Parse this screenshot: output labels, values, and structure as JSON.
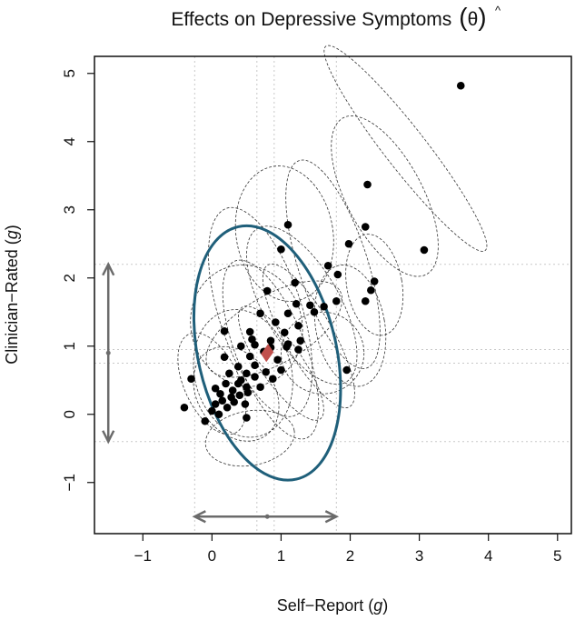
{
  "chart_data": {
    "type": "scatter",
    "title": "Effects on Depressive Symptoms",
    "title_symbol": "θ",
    "title_hat": "^",
    "xlabel": "Self−Report",
    "ylabel": "Clinician−Rated",
    "axis_unit": "g",
    "xlim": [
      -1.7,
      5.2
    ],
    "ylim": [
      -1.75,
      5.25
    ],
    "xticks": [
      -1,
      0,
      1,
      2,
      3,
      4,
      5
    ],
    "yticks": [
      -1,
      0,
      1,
      2,
      3,
      4,
      5
    ],
    "xtick_labels": [
      "−1",
      "0",
      "1",
      "2",
      "3",
      "4",
      "5"
    ],
    "ytick_labels": [
      "−1",
      "0",
      "1",
      "2",
      "3",
      "4",
      "5"
    ],
    "pooled_estimate": {
      "x": 0.8,
      "y": 0.9,
      "color": "#c0504d"
    },
    "prediction_ellipse": {
      "cx": 0.8,
      "cy": 0.9,
      "rx": 1.0,
      "ry": 1.9,
      "angle_deg": -13,
      "color": "#1f5f7a"
    },
    "self_report_interval": [
      -0.25,
      1.8
    ],
    "clinician_interval": [
      -0.4,
      2.2
    ],
    "reference_lines_x": [
      -0.25,
      0.65,
      0.9,
      1.8
    ],
    "reference_lines_y": [
      -0.4,
      0.75,
      0.95,
      2.2
    ],
    "points": [
      {
        "x": 3.6,
        "y": 4.82
      },
      {
        "x": 2.25,
        "y": 3.37
      },
      {
        "x": 1.1,
        "y": 2.78
      },
      {
        "x": 2.22,
        "y": 2.75
      },
      {
        "x": 1.0,
        "y": 2.42
      },
      {
        "x": 1.98,
        "y": 2.5
      },
      {
        "x": 3.07,
        "y": 2.41
      },
      {
        "x": 2.35,
        "y": 1.95
      },
      {
        "x": 1.68,
        "y": 2.18
      },
      {
        "x": 1.2,
        "y": 1.93
      },
      {
        "x": 1.82,
        "y": 2.05
      },
      {
        "x": 0.8,
        "y": 1.81
      },
      {
        "x": 2.3,
        "y": 1.82
      },
      {
        "x": 2.22,
        "y": 1.66
      },
      {
        "x": 1.8,
        "y": 1.66
      },
      {
        "x": 1.62,
        "y": 1.58
      },
      {
        "x": 1.42,
        "y": 1.6
      },
      {
        "x": 1.22,
        "y": 1.62
      },
      {
        "x": 1.48,
        "y": 1.5
      },
      {
        "x": 1.1,
        "y": 1.48
      },
      {
        "x": 0.7,
        "y": 1.48
      },
      {
        "x": 0.92,
        "y": 1.35
      },
      {
        "x": 1.25,
        "y": 1.3
      },
      {
        "x": 1.05,
        "y": 1.2
      },
      {
        "x": 0.55,
        "y": 1.21
      },
      {
        "x": 0.18,
        "y": 1.22
      },
      {
        "x": 1.28,
        "y": 1.08
      },
      {
        "x": 1.08,
        "y": 0.99
      },
      {
        "x": 0.85,
        "y": 1.08
      },
      {
        "x": 0.62,
        "y": 1.02
      },
      {
        "x": 0.42,
        "y": 1.0
      },
      {
        "x": 1.25,
        "y": 0.95
      },
      {
        "x": 0.75,
        "y": 0.92
      },
      {
        "x": 0.55,
        "y": 0.85
      },
      {
        "x": 0.18,
        "y": 0.84
      },
      {
        "x": 0.95,
        "y": 0.8
      },
      {
        "x": 0.62,
        "y": 0.72
      },
      {
        "x": 0.38,
        "y": 0.7
      },
      {
        "x": 1.0,
        "y": 0.65
      },
      {
        "x": 0.78,
        "y": 0.62
      },
      {
        "x": 0.5,
        "y": 0.6
      },
      {
        "x": 0.25,
        "y": 0.6
      },
      {
        "x": 0.88,
        "y": 0.52
      },
      {
        "x": 0.62,
        "y": 0.55
      },
      {
        "x": 0.42,
        "y": 0.5
      },
      {
        "x": 0.2,
        "y": 0.45
      },
      {
        "x": 0.7,
        "y": 0.4
      },
      {
        "x": 0.5,
        "y": 0.4
      },
      {
        "x": 0.05,
        "y": 0.38
      },
      {
        "x": 0.3,
        "y": 0.35
      },
      {
        "x": 0.52,
        "y": 0.32
      },
      {
        "x": 0.12,
        "y": 0.3
      },
      {
        "x": 0.4,
        "y": 0.28
      },
      {
        "x": -0.3,
        "y": 0.52
      },
      {
        "x": 0.15,
        "y": 0.2
      },
      {
        "x": 0.32,
        "y": 0.18
      },
      {
        "x": 0.48,
        "y": 0.15
      },
      {
        "x": 0.05,
        "y": 0.15
      },
      {
        "x": 0.22,
        "y": 0.1
      },
      {
        "x": -0.4,
        "y": 0.1
      },
      {
        "x": 0.0,
        "y": 0.05
      },
      {
        "x": 0.5,
        "y": -0.05
      },
      {
        "x": -0.1,
        "y": -0.1
      },
      {
        "x": 0.1,
        "y": 0.0
      },
      {
        "x": 1.95,
        "y": 0.65
      },
      {
        "x": 0.85,
        "y": 0.98
      },
      {
        "x": 0.58,
        "y": 1.1
      },
      {
        "x": 1.1,
        "y": 1.03
      },
      {
        "x": 0.38,
        "y": 0.45
      },
      {
        "x": 0.28,
        "y": 0.25
      }
    ],
    "study_ellipses": [
      {
        "cx": 2.8,
        "cy": 3.9,
        "rx": 0.3,
        "ry": 1.9,
        "angle_deg": -38
      },
      {
        "cx": 2.5,
        "cy": 3.2,
        "rx": 0.55,
        "ry": 1.3,
        "angle_deg": -28
      },
      {
        "cx": 1.05,
        "cy": 2.65,
        "rx": 0.7,
        "ry": 1.0,
        "angle_deg": -10
      },
      {
        "cx": 1.75,
        "cy": 2.2,
        "rx": 0.5,
        "ry": 1.6,
        "angle_deg": -18
      },
      {
        "cx": 2.35,
        "cy": 1.9,
        "rx": 0.4,
        "ry": 0.75,
        "angle_deg": -10
      },
      {
        "cx": 1.3,
        "cy": 1.6,
        "rx": 0.55,
        "ry": 1.3,
        "angle_deg": -30
      },
      {
        "cx": 0.7,
        "cy": 1.5,
        "rx": 0.6,
        "ry": 1.6,
        "angle_deg": -18
      },
      {
        "cx": 1.4,
        "cy": 1.15,
        "rx": 0.35,
        "ry": 1.2,
        "angle_deg": -30
      },
      {
        "cx": 0.85,
        "cy": 0.95,
        "rx": 0.5,
        "ry": 1.4,
        "angle_deg": -22
      },
      {
        "cx": 0.45,
        "cy": 0.6,
        "rx": 0.7,
        "ry": 0.95,
        "angle_deg": -15
      },
      {
        "cx": 1.0,
        "cy": 0.75,
        "rx": 0.3,
        "ry": 1.0,
        "angle_deg": -35
      },
      {
        "cx": 0.35,
        "cy": 0.3,
        "rx": 0.55,
        "ry": 0.75,
        "angle_deg": -35
      },
      {
        "cx": 0.0,
        "cy": 0.45,
        "rx": 0.4,
        "ry": 0.8,
        "angle_deg": -25
      },
      {
        "cx": 0.55,
        "cy": -0.35,
        "rx": 0.65,
        "ry": 0.4,
        "angle_deg": -10
      },
      {
        "cx": 0.5,
        "cy": 1.3,
        "rx": 0.8,
        "ry": 0.9,
        "angle_deg": -20
      },
      {
        "cx": 2.0,
        "cy": 1.3,
        "rx": 0.5,
        "ry": 0.9,
        "angle_deg": -10
      },
      {
        "cx": 1.6,
        "cy": 0.9,
        "rx": 0.6,
        "ry": 0.6,
        "angle_deg": 0
      },
      {
        "cx": 0.9,
        "cy": 1.25,
        "rx": 1.1,
        "ry": 0.5,
        "angle_deg": -30
      }
    ]
  }
}
